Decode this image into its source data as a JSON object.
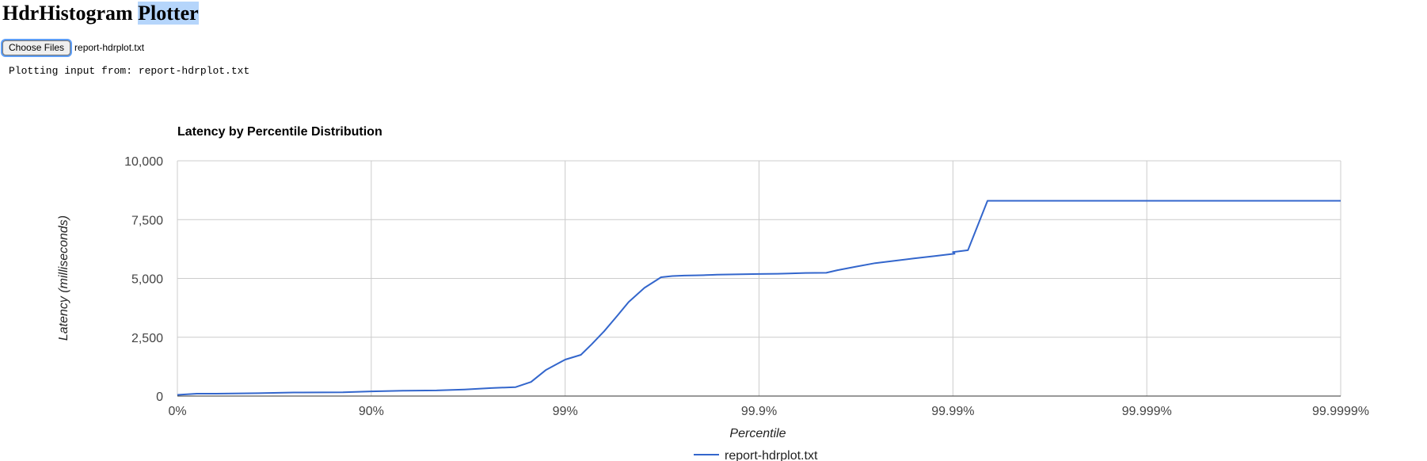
{
  "header": {
    "title_part1": "HdrHistogram ",
    "title_part2": "Plotter"
  },
  "file_input": {
    "button_label": "Choose Files",
    "file_name": "report-hdrplot.txt"
  },
  "status": {
    "text": "Plotting input from: report-hdrplot.txt"
  },
  "colors": {
    "series": "#3366cc",
    "grid": "#cccccc",
    "axis": "#333333",
    "title_highlight": "#b5d5fb"
  },
  "chart_data": {
    "type": "line",
    "title": "Latency by Percentile Distribution",
    "xlabel": "Percentile",
    "ylabel": "Latency (milliseconds)",
    "x_scale": "log(1/(1-percentile))",
    "x_ticks": [
      "0%",
      "90%",
      "99%",
      "99.9%",
      "99.99%",
      "99.999%",
      "99.9999%"
    ],
    "y_ticks": [
      "0",
      "2,500",
      "5,000",
      "7,500",
      "10,000"
    ],
    "ylim": [
      0,
      10000
    ],
    "grid": true,
    "legend_position": "bottom",
    "series": [
      {
        "name": "report-hdrplot.txt",
        "x_percentile": [
          0,
          20.6,
          36.9,
          61.7,
          74.9,
          86.0,
          90,
          93.3,
          95.4,
          96.7,
          97.6,
          98.2,
          98.5,
          98.74,
          98.92,
          99,
          99.17,
          99.27,
          99.37,
          99.46,
          99.53,
          99.61,
          99.68,
          99.72,
          99.757,
          99.788,
          99.812,
          99.826,
          99.835,
          99.9,
          99.92,
          99.93,
          99.94,
          99.955,
          99.9606,
          99.9684,
          99.9748,
          99.98,
          99.9841,
          99.9876,
          99.9902,
          99.99,
          99.99163,
          99.99337,
          99.99339,
          99.9999
        ],
        "y_latency_ms": [
          50,
          100,
          100,
          120,
          150,
          160,
          200,
          230,
          240,
          280,
          340,
          380,
          600,
          1100,
          1400,
          1550,
          1750,
          2200,
          2750,
          3400,
          4000,
          4600,
          5050,
          5100,
          5120,
          5130,
          5140,
          5150,
          5160,
          5190,
          5200,
          5210,
          5230,
          5240,
          5350,
          5500,
          5650,
          5750,
          5850,
          5950,
          6050,
          6120,
          6200,
          8300,
          8300,
          8300
        ]
      }
    ]
  }
}
